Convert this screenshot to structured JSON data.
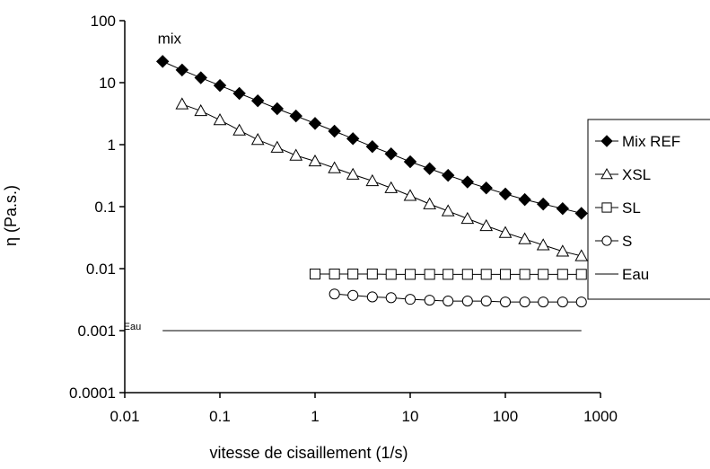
{
  "chart_data": {
    "type": "line",
    "xscale": "log",
    "yscale": "log",
    "xlabel": "vitesse de cisaillement (1/s)",
    "ylabel": "η (Pa.s.)",
    "xlim": [
      0.01,
      1000
    ],
    "ylim": [
      0.0001,
      100
    ],
    "x_ticks": [
      "0.01",
      "0.1",
      "1",
      "10",
      "100",
      "1000"
    ],
    "y_ticks": [
      "0.0001",
      "0.001",
      "0.01",
      "0.1",
      "1",
      "10",
      "100"
    ],
    "grid": false,
    "legend_position": "right",
    "annotations": [
      {
        "text": "mix",
        "x": 0.03,
        "y": 52
      },
      {
        "text": "Eau",
        "x": 0.015,
        "y": 0.00118
      }
    ],
    "series": [
      {
        "name": "Mix REF",
        "marker": "diamond-filled",
        "x": [
          0.025,
          0.04,
          0.063,
          0.1,
          0.16,
          0.25,
          0.4,
          0.63,
          1.0,
          1.6,
          2.5,
          4.0,
          6.3,
          10,
          16,
          25,
          40,
          63,
          100,
          160,
          250,
          400,
          630
        ],
        "y": [
          22,
          16,
          12,
          9,
          6.7,
          5.1,
          3.8,
          2.9,
          2.2,
          1.65,
          1.25,
          0.93,
          0.71,
          0.53,
          0.41,
          0.32,
          0.25,
          0.2,
          0.16,
          0.13,
          0.11,
          0.093,
          0.078
        ]
      },
      {
        "name": "XSL",
        "marker": "triangle-open",
        "x": [
          0.04,
          0.063,
          0.1,
          0.16,
          0.25,
          0.4,
          0.63,
          1.0,
          1.6,
          2.5,
          4.0,
          6.3,
          10,
          16,
          25,
          40,
          63,
          100,
          160,
          250,
          400,
          630
        ],
        "y": [
          4.5,
          3.5,
          2.5,
          1.7,
          1.2,
          0.9,
          0.67,
          0.54,
          0.42,
          0.33,
          0.26,
          0.2,
          0.15,
          0.11,
          0.085,
          0.064,
          0.049,
          0.038,
          0.03,
          0.024,
          0.019,
          0.016
        ]
      },
      {
        "name": "SL",
        "marker": "square-open",
        "x": [
          1.0,
          1.6,
          2.5,
          4.0,
          6.3,
          10,
          16,
          25,
          40,
          63,
          100,
          160,
          250,
          400,
          630
        ],
        "y": [
          0.0082,
          0.0082,
          0.0082,
          0.0082,
          0.0081,
          0.0081,
          0.0081,
          0.0081,
          0.0081,
          0.0081,
          0.0081,
          0.0081,
          0.0081,
          0.0081,
          0.0081
        ]
      },
      {
        "name": "S",
        "marker": "circle-open",
        "x": [
          1.6,
          2.5,
          4.0,
          6.3,
          10,
          16,
          25,
          40,
          63,
          100,
          160,
          250,
          400,
          630
        ],
        "y": [
          0.0039,
          0.0037,
          0.0035,
          0.0034,
          0.0032,
          0.0031,
          0.003,
          0.003,
          0.003,
          0.0029,
          0.0029,
          0.0029,
          0.0029,
          0.0029
        ]
      },
      {
        "name": "Eau",
        "marker": "none",
        "x": [
          0.025,
          630
        ],
        "y": [
          0.001,
          0.001
        ]
      }
    ]
  }
}
